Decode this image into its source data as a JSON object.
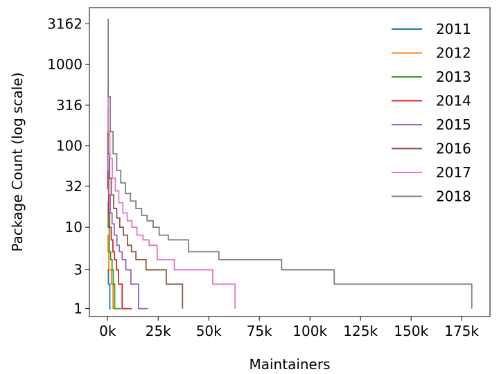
{
  "chart_data": {
    "type": "line",
    "title": "",
    "xlabel": "Maintainers",
    "ylabel": "Package Count (log scale)",
    "xscale": "linear",
    "yscale": "log",
    "xlim": [
      -9000,
      189000
    ],
    "ylim": [
      0.8,
      5000
    ],
    "x_ticks": [
      0,
      25000,
      50000,
      75000,
      100000,
      125000,
      150000,
      175000
    ],
    "x_tick_labels": [
      "0k",
      "25k",
      "50k",
      "75k",
      "100k",
      "125k",
      "150k",
      "175k"
    ],
    "y_ticks": [
      1,
      3,
      10,
      32,
      100,
      316,
      1000,
      3162
    ],
    "y_tick_labels": [
      "1",
      "3",
      "10",
      "32",
      "100",
      "316",
      "1000",
      "3162"
    ],
    "grid": false,
    "legend_position": "top-right",
    "colors": {
      "2011": "#1f77b4",
      "2012": "#ff7f0e",
      "2013": "#2ca02c",
      "2014": "#d62728",
      "2015": "#9467bd",
      "2016": "#8c564b",
      "2017": "#e377c2",
      "2018": "#7f7f7f"
    },
    "series": [
      {
        "name": "2011",
        "x": [
          0,
          150,
          400,
          700,
          1100,
          1500
        ],
        "y": [
          3,
          3,
          2,
          2,
          1,
          1
        ]
      },
      {
        "name": "2012",
        "x": [
          0,
          200,
          600,
          1300,
          1900,
          2700,
          3800
        ],
        "y": [
          8,
          5,
          3,
          3,
          2,
          1,
          1
        ]
      },
      {
        "name": "2013",
        "x": [
          0,
          300,
          800,
          1500,
          2200,
          2800,
          3500,
          6700
        ],
        "y": [
          20,
          10,
          5,
          4,
          3,
          2,
          1,
          1
        ]
      },
      {
        "name": "2014",
        "x": [
          0,
          100,
          500,
          1000,
          1800,
          2600,
          3400,
          4400,
          5400,
          7200,
          12000
        ],
        "y": [
          80,
          30,
          15,
          10,
          7,
          5,
          4,
          3,
          2,
          1,
          1
        ]
      },
      {
        "name": "2015",
        "x": [
          0,
          150,
          600,
          1300,
          2200,
          3300,
          4600,
          5800,
          7200,
          9000,
          11500,
          15300,
          20000
        ],
        "y": [
          150,
          50,
          25,
          15,
          11,
          8,
          6,
          5,
          4,
          3,
          2,
          1,
          1
        ]
      },
      {
        "name": "2016",
        "x": [
          0,
          200,
          900,
          1800,
          3000,
          4500,
          6000,
          7800,
          9800,
          11800,
          14000,
          19000,
          29000,
          37000
        ],
        "y": [
          300,
          80,
          40,
          25,
          17,
          13,
          10,
          8,
          6,
          5,
          4,
          3,
          2,
          1
        ]
      },
      {
        "name": "2017",
        "x": [
          0,
          250,
          1100,
          2300,
          3800,
          5500,
          7500,
          9700,
          12000,
          14500,
          17500,
          20500,
          24500,
          33000,
          52000,
          63000
        ],
        "y": [
          600,
          150,
          70,
          40,
          28,
          20,
          15,
          12,
          10,
          8,
          7,
          6,
          4,
          3,
          2,
          1
        ]
      },
      {
        "name": "2018",
        "x": [
          0,
          300,
          1300,
          2700,
          4500,
          6500,
          8800,
          11300,
          14000,
          16800,
          19500,
          22500,
          25500,
          30000,
          40000,
          55000,
          86000,
          112000,
          180000
        ],
        "y": [
          3600,
          400,
          150,
          80,
          50,
          35,
          26,
          21,
          17,
          14,
          12,
          10,
          8,
          7,
          5,
          4,
          3,
          2,
          1
        ]
      }
    ]
  }
}
